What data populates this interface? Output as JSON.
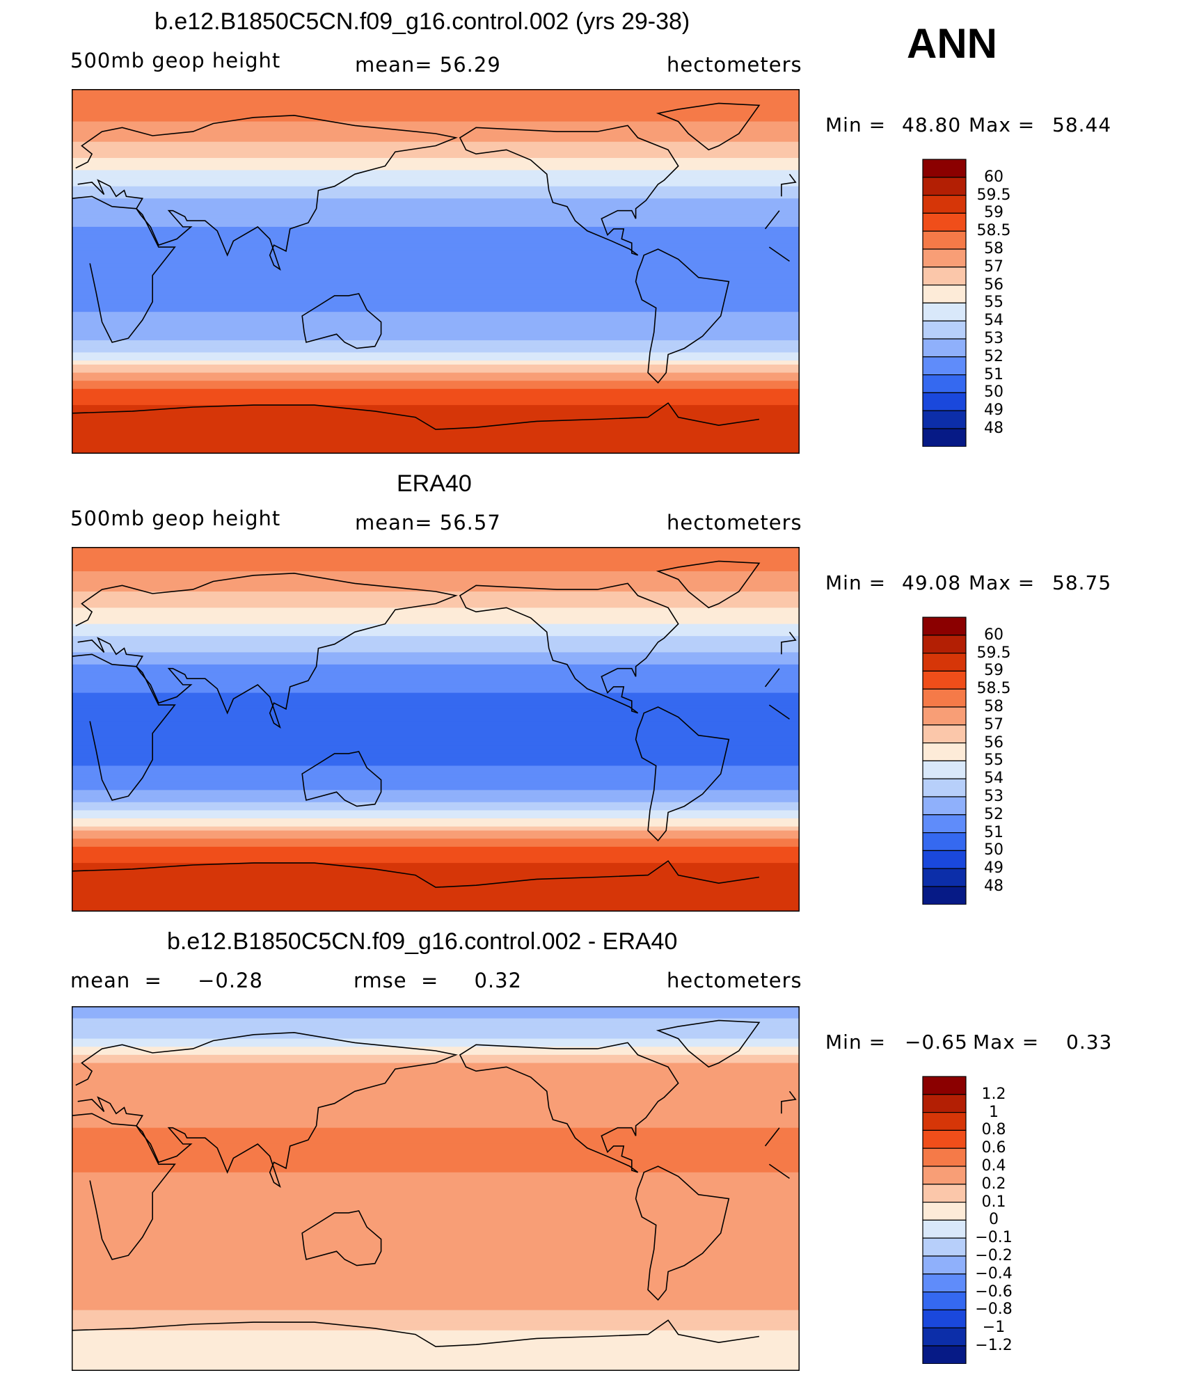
{
  "header": {
    "season": "ANN"
  },
  "panels": [
    {
      "title": "b.e12.B1850C5CN.f09_g16.control.002 (yrs 29-38)",
      "left_label": "500mb  geop  height",
      "center_label": "mean=   56.29",
      "units": "hectometers",
      "min_label": "Min  =",
      "min_value": "48.80",
      "max_label": "Max  =",
      "max_value": "58.44",
      "colorbar_labels": [
        "60",
        "59.5",
        "59",
        "58.5",
        "58",
        "57",
        "56",
        "55",
        "54",
        "53",
        "52",
        "51",
        "50",
        "49",
        "48"
      ],
      "colorbar_colors": [
        "#8b0000",
        "#b31f04",
        "#d63608",
        "#f04e1a",
        "#f57a48",
        "#f89e76",
        "#fbc7aa",
        "#fdebd8",
        "#d9e8fa",
        "#b7cffa",
        "#8fb0fb",
        "#5f8cfa",
        "#3569f0",
        "#1a48dc",
        "#0c2ea9",
        "#061a86"
      ]
    },
    {
      "title": "ERA40",
      "left_label": "500mb  geop  height",
      "center_label": "mean=   56.57",
      "units": "hectometers",
      "min_label": "Min  =",
      "min_value": "49.08",
      "max_label": "Max  =",
      "max_value": "58.75",
      "colorbar_labels": [
        "60",
        "59.5",
        "59",
        "58.5",
        "58",
        "57",
        "56",
        "55",
        "54",
        "53",
        "52",
        "51",
        "50",
        "49",
        "48"
      ],
      "colorbar_colors": [
        "#8b0000",
        "#b31f04",
        "#d63608",
        "#f04e1a",
        "#f57a48",
        "#f89e76",
        "#fbc7aa",
        "#fdebd8",
        "#d9e8fa",
        "#b7cffa",
        "#8fb0fb",
        "#5f8cfa",
        "#3569f0",
        "#1a48dc",
        "#0c2ea9",
        "#061a86"
      ]
    },
    {
      "title": "b.e12.B1850C5CN.f09_g16.control.002 - ERA40",
      "left_label": "mean  =     −0.28",
      "center_label": "rmse  =     0.32",
      "units": "hectometers",
      "min_label": "Min  =",
      "min_value": "−0.65",
      "max_label": "Max  =",
      "max_value": "0.33",
      "colorbar_labels": [
        "1.2",
        "1",
        "0.8",
        "0.6",
        "0.4",
        "0.2",
        "0.1",
        "0",
        "−0.1",
        "−0.2",
        "−0.4",
        "−0.6",
        "−0.8",
        "−1",
        "−1.2"
      ],
      "colorbar_colors": [
        "#8b0000",
        "#b31f04",
        "#d63608",
        "#f04e1a",
        "#f57a48",
        "#f89e76",
        "#fbc7aa",
        "#fdebd8",
        "#d9e8fa",
        "#b7cffa",
        "#8fb0fb",
        "#5f8cfa",
        "#3569f0",
        "#1a48dc",
        "#0c2ea9",
        "#061a86"
      ]
    }
  ],
  "chart_data": [
    {
      "type": "heatmap",
      "title": "b.e12.B1850C5CN.f09_g16.control.002 (yrs 29-38)",
      "variable": "500mb geop height",
      "units": "hectometers",
      "mean": 56.29,
      "min": 48.8,
      "max": 58.44,
      "levels": [
        48,
        49,
        50,
        51,
        52,
        53,
        54,
        55,
        56,
        57,
        58,
        58.5,
        59,
        59.5,
        60
      ],
      "zonal_profile_lat": [
        90,
        75,
        60,
        50,
        40,
        30,
        15,
        0,
        -15,
        -30,
        -40,
        -50,
        -60,
        -70,
        -80,
        -90
      ],
      "zonal_profile_value": [
        51.0,
        51.8,
        53.5,
        55.0,
        56.4,
        57.8,
        58.2,
        58.3,
        58.2,
        57.6,
        56.0,
        53.0,
        50.5,
        49.5,
        49.0,
        49.0
      ]
    },
    {
      "type": "heatmap",
      "title": "ERA40",
      "variable": "500mb geop height",
      "units": "hectometers",
      "mean": 56.57,
      "min": 49.08,
      "max": 58.75,
      "levels": [
        48,
        49,
        50,
        51,
        52,
        53,
        54,
        55,
        56,
        57,
        58,
        58.5,
        59,
        59.5,
        60
      ],
      "zonal_profile_lat": [
        90,
        75,
        60,
        50,
        40,
        30,
        15,
        0,
        -15,
        -30,
        -40,
        -50,
        -60,
        -70,
        -80,
        -90
      ],
      "zonal_profile_value": [
        51.3,
        52.2,
        54.0,
        55.4,
        56.8,
        58.2,
        58.6,
        58.7,
        58.6,
        58.0,
        56.3,
        53.2,
        50.6,
        49.6,
        49.2,
        49.1
      ]
    },
    {
      "type": "heatmap",
      "title": "b.e12.B1850C5CN.f09_g16.control.002 - ERA40",
      "variable": "difference",
      "units": "hectometers",
      "mean": -0.28,
      "rmse": 0.32,
      "min": -0.65,
      "max": 0.33,
      "levels": [
        -1.2,
        -1,
        -0.8,
        -0.6,
        -0.4,
        -0.2,
        -0.1,
        0,
        0.1,
        0.2,
        0.4,
        0.6,
        0.8,
        1,
        1.2
      ],
      "zonal_profile_lat": [
        90,
        75,
        60,
        50,
        40,
        30,
        15,
        0,
        -15,
        -30,
        -40,
        -50,
        -60,
        -70,
        -80,
        -90
      ],
      "zonal_profile_value": [
        0.25,
        0.1,
        -0.25,
        -0.35,
        -0.35,
        -0.4,
        -0.45,
        -0.35,
        -0.3,
        -0.35,
        -0.3,
        -0.3,
        -0.2,
        -0.1,
        -0.05,
        -0.1
      ]
    }
  ]
}
